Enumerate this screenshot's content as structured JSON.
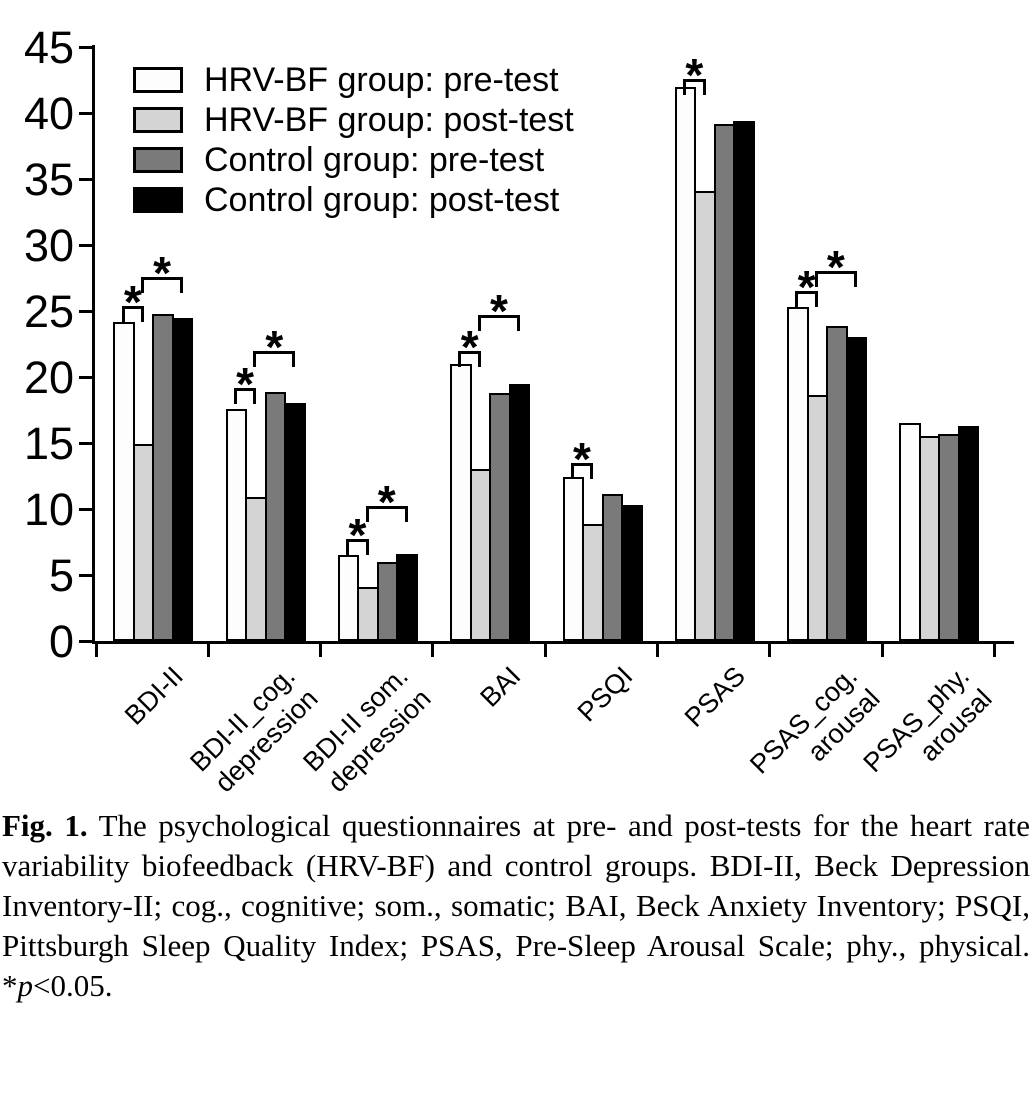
{
  "chart_data": {
    "type": "bar",
    "title": "",
    "xlabel": "",
    "ylabel": "",
    "ylim": [
      0,
      45
    ],
    "yticks": [
      0,
      5,
      10,
      15,
      20,
      25,
      30,
      35,
      40,
      45
    ],
    "grid": false,
    "legend_position": "top-left-inside",
    "categories": [
      "BDI-II",
      "BDI-II_cog. depression",
      "BDI-II som. depression",
      "BAI",
      "PSQI",
      "PSAS",
      "PSAS_cog. arousal",
      "PSAS_phy. arousal"
    ],
    "category_label_lines": [
      [
        "BDI-II"
      ],
      [
        "BDI-II_cog.",
        "depression"
      ],
      [
        "BDI-II som.",
        "depression"
      ],
      [
        "BAI"
      ],
      [
        "PSQI"
      ],
      [
        "PSAS"
      ],
      [
        "PSAS_cog.",
        "arousal"
      ],
      [
        "PSAS_phy.",
        "arousal"
      ]
    ],
    "series": [
      {
        "name": "HRV-BF group: pre-test",
        "color": "#fdfdfd",
        "values": [
          24.2,
          17.6,
          6.5,
          21.0,
          12.4,
          42.0,
          25.3,
          16.5
        ]
      },
      {
        "name": "HRV-BF group: post-test",
        "color": "#d4d4d4",
        "values": [
          14.9,
          10.9,
          4.1,
          13.0,
          8.9,
          34.1,
          18.6,
          15.5
        ]
      },
      {
        "name": "Control group: pre-test",
        "color": "#7a7a7a",
        "values": [
          24.8,
          18.9,
          6.0,
          18.8,
          11.1,
          39.2,
          23.9,
          15.7
        ]
      },
      {
        "name": "Control group: post-test",
        "color": "#000000",
        "values": [
          24.5,
          18.0,
          6.6,
          19.5,
          10.3,
          39.4,
          23.0,
          16.3
        ]
      }
    ],
    "significance_marker": "*",
    "significance_note": "*p<0.05",
    "brackets": [
      {
        "category_index": 0,
        "from_series": 0,
        "to_series": 1,
        "y": 25.4,
        "label": "*"
      },
      {
        "category_index": 0,
        "from_series": 1,
        "to_series": 3,
        "y": 27.6,
        "label": "*"
      },
      {
        "category_index": 1,
        "from_series": 0,
        "to_series": 1,
        "y": 19.2,
        "label": "*"
      },
      {
        "category_index": 1,
        "from_series": 1,
        "to_series": 3,
        "y": 22.0,
        "label": "*"
      },
      {
        "category_index": 2,
        "from_series": 0,
        "to_series": 1,
        "y": 7.7,
        "label": "*"
      },
      {
        "category_index": 2,
        "from_series": 1,
        "to_series": 3,
        "y": 10.2,
        "label": "*"
      },
      {
        "category_index": 3,
        "from_series": 0,
        "to_series": 1,
        "y": 22.0,
        "label": "*"
      },
      {
        "category_index": 3,
        "from_series": 1,
        "to_series": 3,
        "y": 24.7,
        "label": "*"
      },
      {
        "category_index": 4,
        "from_series": 0,
        "to_series": 1,
        "y": 13.5,
        "label": "*"
      },
      {
        "category_index": 5,
        "from_series": 0,
        "to_series": 1,
        "y": 42.6,
        "label": "*"
      },
      {
        "category_index": 6,
        "from_series": 0,
        "to_series": 1,
        "y": 26.5,
        "label": "*"
      },
      {
        "category_index": 6,
        "from_series": 1,
        "to_series": 3,
        "y": 28.0,
        "label": "*"
      }
    ]
  },
  "colors": {
    "axis": "#000000",
    "bar_border": "#000000",
    "background": "#ffffff"
  },
  "caption": {
    "segments": [
      {
        "text": "Fig. 1.",
        "style": "bold"
      },
      {
        "text": " The psychological questionnaires at pre- and post-tests for the heart rate variability biofeedback (HRV-BF) and control groups. BDI-II, Beck Depression Inventory-II; cog., cognitive; som., somatic; BAI, Beck Anxiety Inventory; PSQI, Pittsburgh Sleep Quality Index; PSAS, Pre-Sleep Arousal Scale; phy., physical. ",
        "style": "normal"
      },
      {
        "text": "*",
        "style": "normal"
      },
      {
        "text": "p",
        "style": "italic"
      },
      {
        "text": "<0.05.",
        "style": "normal"
      }
    ]
  }
}
